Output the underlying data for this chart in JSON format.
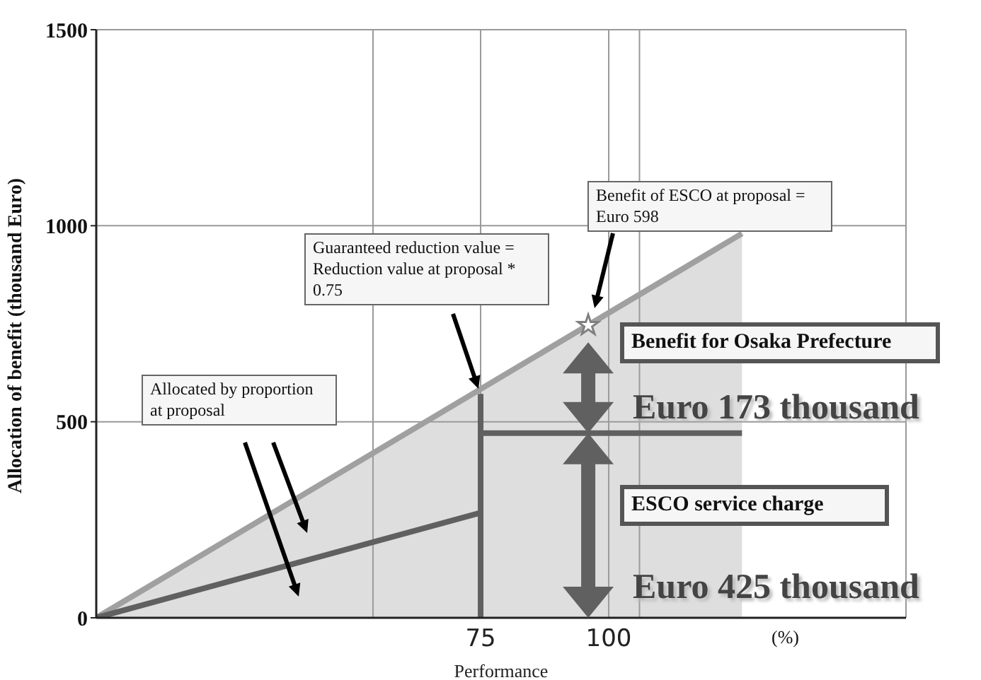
{
  "chart_data": {
    "type": "line",
    "xlabel": "Performance",
    "ylabel": "Allocation of benefit  (thousand Euro)",
    "xlim": [
      0,
      158
    ],
    "ylim": [
      0,
      1500
    ],
    "xticks": [
      {
        "value": 54,
        "label": null
      },
      75,
      100,
      {
        "value": 106,
        "label": null
      }
    ],
    "yticks": [
      0,
      500,
      1000,
      1500
    ],
    "grid": true,
    "series": [
      {
        "type": "area",
        "color": "#a0a0a0",
        "x": [
          0,
          126
        ],
        "values": [
          0,
          980
        ]
      },
      {
        "color": "#606060",
        "x": [
          0,
          75
        ],
        "values": [
          0,
          268
        ]
      },
      {
        "color": "#606060",
        "x": [
          75,
          75
        ],
        "values": [
          0,
          571
        ]
      },
      {
        "color": "#606060",
        "x": [
          75,
          126
        ],
        "values": [
          471,
          471
        ]
      },
      {
        "type": "scatter",
        "color": "#808080",
        "marker": "star",
        "x": [
          96
        ],
        "values": [
          746
        ]
      }
    ],
    "annotations": [
      "Allocated by proportion at proposal",
      "Guaranteed reduction value = Reduction value at proposal * 0.75",
      "Benefit of ESCO at proposal =  Euro 598",
      "Benefit for Osaka Prefecture",
      "Euro 173 thousand",
      "ESCO service charge",
      "Euro 425 thousand",
      "(%)"
    ]
  }
}
